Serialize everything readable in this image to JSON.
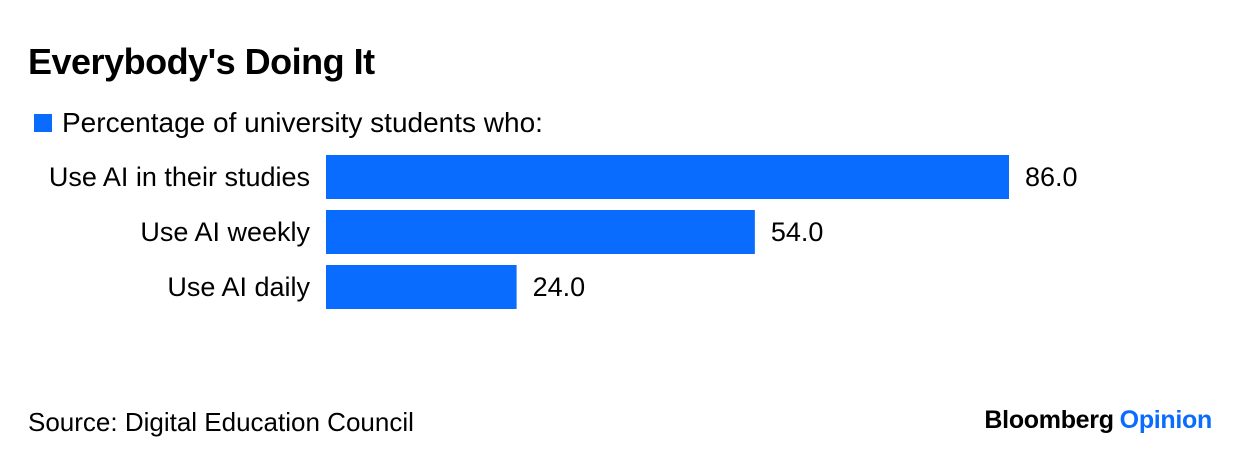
{
  "chart_data": {
    "type": "bar",
    "orientation": "horizontal",
    "title": "Everybody's Doing It",
    "categories": [
      "Use AI in their studies",
      "Use AI weekly",
      "Use AI daily"
    ],
    "series": [
      {
        "name": "Percentage of university students who:",
        "values": [
          86.0,
          54.0,
          24.0
        ],
        "value_labels": [
          "86.0",
          "54.0",
          "24.0"
        ],
        "color": "#0A6CFF"
      }
    ],
    "xlim": [
      0,
      100
    ],
    "grid": false,
    "legend_position": "top-left"
  },
  "footer": {
    "source": "Source: Digital Education Council",
    "brand_name": "Bloomberg",
    "brand_section": "Opinion",
    "brand_accent_color": "#0A6CFF"
  }
}
